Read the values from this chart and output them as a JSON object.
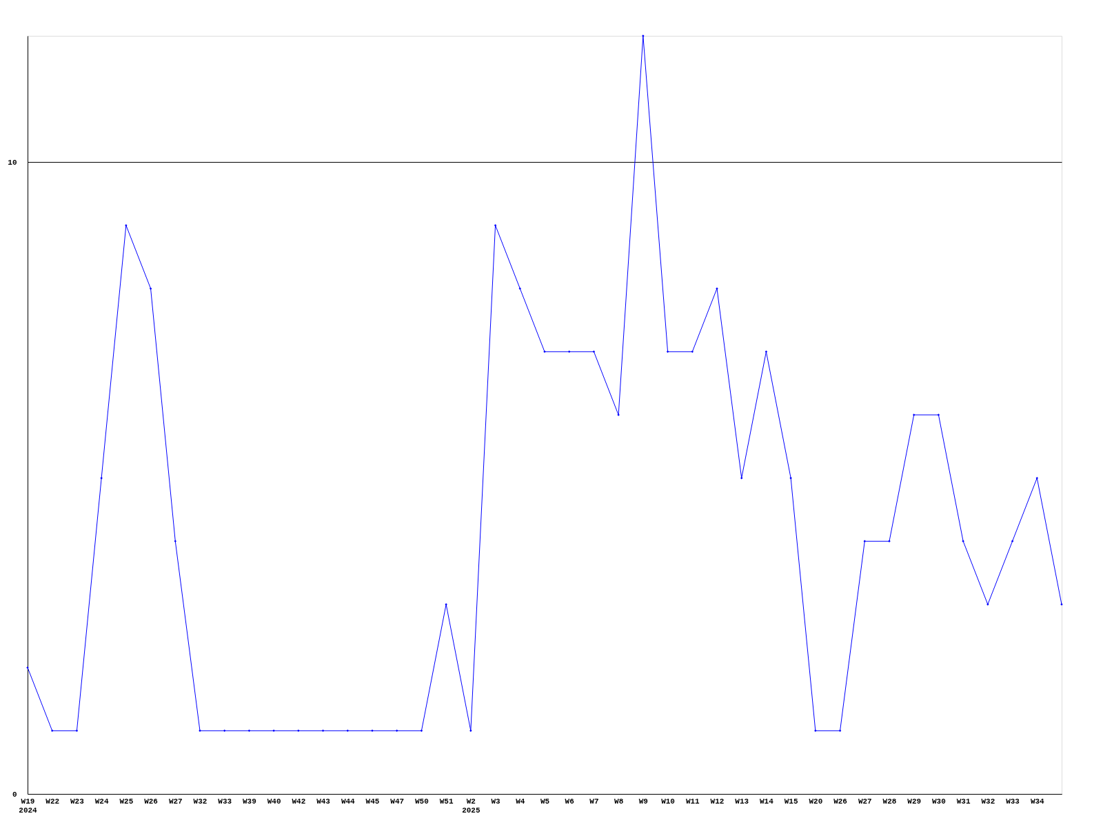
{
  "chart_data": {
    "type": "line",
    "categories": [
      "W19\n2024",
      "W22",
      "W23",
      "W24",
      "W25",
      "W26",
      "W27",
      "W32",
      "W33",
      "W39",
      "W40",
      "W42",
      "W43",
      "W44",
      "W45",
      "W47",
      "W50",
      "W51",
      "W2\n2025",
      "W3",
      "W4",
      "W5",
      "W6",
      "W7",
      "W8",
      "W9",
      "W10",
      "W11",
      "W12",
      "W13",
      "W14",
      "W15",
      "W20",
      "W26",
      "W27",
      "W28",
      "W29",
      "W30",
      "W31",
      "W32",
      "W33",
      "W34",
      null
    ],
    "series": [
      {
        "color": "#0000ff",
        "values": [
          2,
          1,
          1,
          5,
          9,
          8,
          4,
          1,
          1,
          1,
          1,
          1,
          1,
          1,
          1,
          1,
          1,
          3,
          1,
          9,
          8,
          7,
          7,
          7,
          6,
          12,
          7,
          7,
          8,
          5,
          7,
          5,
          1,
          1,
          4,
          4,
          6,
          6,
          4,
          3,
          4,
          5,
          3
        ]
      }
    ],
    "ylim": [
      0,
      12
    ],
    "yticks": [
      0,
      10
    ],
    "grid": "y",
    "marker": "diamond",
    "line_style": "solid"
  }
}
